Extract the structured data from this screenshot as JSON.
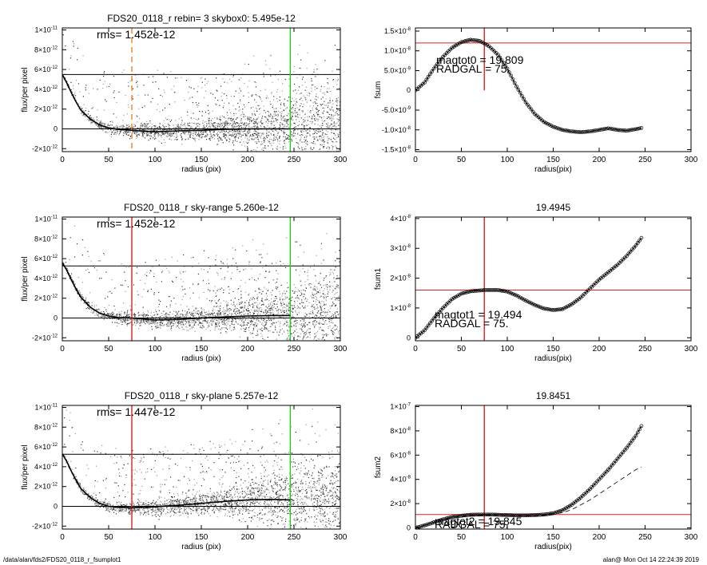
{
  "footer": {
    "path": "/data/alan/fds2/FDS20_0118_r_fsumplot1",
    "stamp": "alan@  Mon Oct 14 22:24:39 2019"
  },
  "chart_data": [
    {
      "id": "profile1",
      "type": "scatter",
      "title": "FDS20_0118_r rebin= 3    skybox0:  5.495e-12",
      "annotation": "rms= 1.452e-12",
      "xlabel": "radius (pix)",
      "ylabel": "flux/per pixel",
      "xlim": [
        0,
        300
      ],
      "ylim": [
        -2.3e-12,
        1.02e-11
      ],
      "xticks": [
        "0",
        "50",
        "100",
        "150",
        "200",
        "250",
        "300"
      ],
      "yticks": [
        {
          "v": -2e-12,
          "m": "-2",
          "e": "-12"
        },
        {
          "v": 0,
          "m": "0",
          "e": ""
        },
        {
          "v": 2e-12,
          "m": "2",
          "e": "-12"
        },
        {
          "v": 4e-12,
          "m": "4",
          "e": "-12"
        },
        {
          "v": 6e-12,
          "m": "6",
          "e": "-12"
        },
        {
          "v": 8e-12,
          "m": "8",
          "e": "-12"
        },
        {
          "v": 1e-11,
          "m": "1",
          "e": "-11"
        }
      ],
      "hlines": [
        {
          "y": 5.495e-12,
          "color": "#000000"
        },
        {
          "y": 0,
          "color": "#000000"
        }
      ],
      "vlines": [
        {
          "x": 75,
          "color": "#f08020",
          "style": "dashed"
        },
        {
          "x": 246,
          "color": "#22cc22",
          "style": "solid"
        }
      ],
      "series": [
        {
          "values": [
            [
              0,
              5.5e-12
            ],
            [
              5,
              4.6e-12
            ],
            [
              10,
              3.6e-12
            ],
            [
              15,
              2.7e-12
            ],
            [
              20,
              1.9e-12
            ],
            [
              30,
              1e-12
            ],
            [
              40,
              4e-13
            ],
            [
              50,
              1e-13
            ],
            [
              60,
              -5e-14
            ],
            [
              75,
              -1.5e-13
            ],
            [
              100,
              -3e-13
            ],
            [
              125,
              -2e-13
            ],
            [
              150,
              -1.5e-13
            ],
            [
              175,
              -5e-14
            ],
            [
              200,
              0
            ],
            [
              225,
              0
            ],
            [
              246,
              0
            ]
          ]
        }
      ]
    },
    {
      "id": "fsum0",
      "type": "line",
      "title": "",
      "annotations": [
        "magtot0 =  19.809",
        "RADGAL =     75."
      ],
      "xlabel": "radius(pix)",
      "ylabel": "fsum",
      "xlim": [
        0,
        300
      ],
      "ylim": [
        -1.55e-08,
        1.58e-08
      ],
      "xticks": [
        "0",
        "50",
        "100",
        "150",
        "200",
        "250",
        "300"
      ],
      "yticks": [
        {
          "v": -1.5e-08,
          "m": "-1.5",
          "e": "-8"
        },
        {
          "v": -1e-08,
          "m": "-1.0",
          "e": "-8"
        },
        {
          "v": -5e-09,
          "m": "-5.0",
          "e": "-9"
        },
        {
          "v": 0,
          "m": "0",
          "e": ""
        },
        {
          "v": 5e-09,
          "m": "5.0",
          "e": "-9"
        },
        {
          "v": 1e-08,
          "m": "1.0",
          "e": "-8"
        },
        {
          "v": 1.5e-08,
          "m": "1.5",
          "e": "-8"
        }
      ],
      "hlines": [
        {
          "y": 1.2e-08,
          "color": "#e02020"
        }
      ],
      "vlines": [
        {
          "x": 75,
          "color": "#e02020",
          "style": "solid",
          "ymin": 0
        }
      ],
      "series": [
        {
          "values": [
            [
              0,
              0
            ],
            [
              10,
              2e-09
            ],
            [
              20,
              5.5e-09
            ],
            [
              30,
              8.5e-09
            ],
            [
              40,
              1.08e-08
            ],
            [
              50,
              1.22e-08
            ],
            [
              60,
              1.28e-08
            ],
            [
              70,
              1.25e-08
            ],
            [
              80,
              1.12e-08
            ],
            [
              90,
              9e-09
            ],
            [
              100,
              5.5e-09
            ],
            [
              110,
              1e-09
            ],
            [
              120,
              -3e-09
            ],
            [
              130,
              -6e-09
            ],
            [
              140,
              -8e-09
            ],
            [
              150,
              -9.2e-09
            ],
            [
              160,
              -1e-08
            ],
            [
              170,
              -1.04e-08
            ],
            [
              180,
              -1.06e-08
            ],
            [
              190,
              -1.04e-08
            ],
            [
              200,
              -1e-08
            ],
            [
              210,
              -9.6e-09
            ],
            [
              220,
              -1e-08
            ],
            [
              230,
              -1.02e-08
            ],
            [
              240,
              -9.8e-09
            ],
            [
              246,
              -9.5e-09
            ]
          ]
        }
      ]
    },
    {
      "id": "profile2",
      "type": "scatter",
      "title": "FDS20_0118_r sky-range  5.260e-12",
      "annotation": "rms= 1.452e-12",
      "xlabel": "radius (pix)",
      "ylabel": "flux/per pixel",
      "xlim": [
        0,
        300
      ],
      "ylim": [
        -2.3e-12,
        1.02e-11
      ],
      "xticks": [
        "0",
        "50",
        "100",
        "150",
        "200",
        "250",
        "300"
      ],
      "yticks": [
        {
          "v": -2e-12,
          "m": "-2",
          "e": "-12"
        },
        {
          "v": 0,
          "m": "0",
          "e": ""
        },
        {
          "v": 2e-12,
          "m": "2",
          "e": "-12"
        },
        {
          "v": 4e-12,
          "m": "4",
          "e": "-12"
        },
        {
          "v": 6e-12,
          "m": "6",
          "e": "-12"
        },
        {
          "v": 8e-12,
          "m": "8",
          "e": "-12"
        },
        {
          "v": 1e-11,
          "m": "1",
          "e": "-11"
        }
      ],
      "hlines": [
        {
          "y": 5.26e-12,
          "color": "#000000"
        },
        {
          "y": 0,
          "color": "#000000"
        }
      ],
      "vlines": [
        {
          "x": 75,
          "color": "#e02020",
          "style": "solid"
        },
        {
          "x": 246,
          "color": "#22cc22",
          "style": "solid"
        }
      ],
      "series": [
        {
          "values": [
            [
              0,
              5.6e-12
            ],
            [
              5,
              4.8e-12
            ],
            [
              10,
              3.8e-12
            ],
            [
              15,
              2.9e-12
            ],
            [
              20,
              2.1e-12
            ],
            [
              30,
              1.1e-12
            ],
            [
              40,
              5e-13
            ],
            [
              50,
              2e-13
            ],
            [
              60,
              5e-14
            ],
            [
              75,
              0
            ],
            [
              100,
              -2e-13
            ],
            [
              125,
              -1.5e-13
            ],
            [
              150,
              0
            ],
            [
              175,
              1e-13
            ],
            [
              200,
              2e-13
            ],
            [
              225,
              2.5e-13
            ],
            [
              246,
              2.5e-13
            ]
          ]
        }
      ]
    },
    {
      "id": "fsum1",
      "type": "line",
      "title": "19.4945",
      "annotations": [
        "magtot1 =  19.494",
        "RADGAL =     75."
      ],
      "xlabel": "radius(pix)",
      "ylabel": "fsum1",
      "xlim": [
        0,
        300
      ],
      "ylim": [
        -1e-09,
        4.05e-08
      ],
      "xticks": [
        "0",
        "50",
        "100",
        "150",
        "200",
        "250",
        "300"
      ],
      "yticks": [
        {
          "v": 0,
          "m": "0",
          "e": ""
        },
        {
          "v": 1e-08,
          "m": "1",
          "e": "-8"
        },
        {
          "v": 2e-08,
          "m": "2",
          "e": "-8"
        },
        {
          "v": 3e-08,
          "m": "3",
          "e": "-8"
        },
        {
          "v": 4e-08,
          "m": "4",
          "e": "-8"
        }
      ],
      "hlines": [
        {
          "y": 1.6e-08,
          "color": "#e02020"
        }
      ],
      "vlines": [
        {
          "x": 75,
          "color": "#e02020",
          "style": "solid"
        }
      ],
      "series": [
        {
          "values": [
            [
              0,
              0
            ],
            [
              10,
              2.5e-09
            ],
            [
              20,
              6.5e-09
            ],
            [
              30,
              1e-08
            ],
            [
              40,
              1.3e-08
            ],
            [
              50,
              1.48e-08
            ],
            [
              60,
              1.56e-08
            ],
            [
              75,
              1.6e-08
            ],
            [
              90,
              1.6e-08
            ],
            [
              100,
              1.55e-08
            ],
            [
              110,
              1.42e-08
            ],
            [
              120,
              1.25e-08
            ],
            [
              130,
              1.1e-08
            ],
            [
              140,
              9.8e-09
            ],
            [
              150,
              9.3e-09
            ],
            [
              160,
              9.6e-09
            ],
            [
              170,
              1.12e-08
            ],
            [
              180,
              1.35e-08
            ],
            [
              190,
              1.65e-08
            ],
            [
              200,
              1.95e-08
            ],
            [
              210,
              2.2e-08
            ],
            [
              220,
              2.45e-08
            ],
            [
              230,
              2.75e-08
            ],
            [
              240,
              3.1e-08
            ],
            [
              246,
              3.35e-08
            ]
          ]
        }
      ]
    },
    {
      "id": "profile3",
      "type": "scatter",
      "title": "FDS20_0118_r sky-plane  5.257e-12",
      "annotation": "rms= 1.447e-12",
      "xlabel": "radius (pix)",
      "ylabel": "flux/per pixel",
      "xlim": [
        0,
        300
      ],
      "ylim": [
        -2.3e-12,
        1.02e-11
      ],
      "xticks": [
        "0",
        "50",
        "100",
        "150",
        "200",
        "250",
        "300"
      ],
      "yticks": [
        {
          "v": -2e-12,
          "m": "-2",
          "e": "-12"
        },
        {
          "v": 0,
          "m": "0",
          "e": ""
        },
        {
          "v": 2e-12,
          "m": "2",
          "e": "-12"
        },
        {
          "v": 4e-12,
          "m": "4",
          "e": "-12"
        },
        {
          "v": 6e-12,
          "m": "6",
          "e": "-12"
        },
        {
          "v": 8e-12,
          "m": "8",
          "e": "-12"
        },
        {
          "v": 1e-11,
          "m": "1",
          "e": "-11"
        }
      ],
      "hlines": [
        {
          "y": 5.257e-12,
          "color": "#000000"
        },
        {
          "y": 0,
          "color": "#000000"
        }
      ],
      "vlines": [
        {
          "x": 75,
          "color": "#e02020",
          "style": "solid"
        },
        {
          "x": 246,
          "color": "#22cc22",
          "style": "solid"
        }
      ],
      "series": [
        {
          "values": [
            [
              0,
              5.3e-12
            ],
            [
              5,
              4.5e-12
            ],
            [
              10,
              3.5e-12
            ],
            [
              15,
              2.6e-12
            ],
            [
              20,
              1.8e-12
            ],
            [
              30,
              9e-13
            ],
            [
              40,
              3e-13
            ],
            [
              50,
              0
            ],
            [
              60,
              -1e-13
            ],
            [
              75,
              -1.5e-13
            ],
            [
              100,
              -5e-14
            ],
            [
              125,
              1e-13
            ],
            [
              150,
              3e-13
            ],
            [
              175,
              5e-13
            ],
            [
              200,
              6.5e-13
            ],
            [
              225,
              7e-13
            ],
            [
              246,
              6.5e-13
            ]
          ]
        }
      ]
    },
    {
      "id": "fsum2",
      "type": "line",
      "title": "19.8451",
      "annotations": [
        "magtot2 =  19.845",
        "RADGAL =     75."
      ],
      "xlabel": "radius(pix)",
      "ylabel": "fsum2",
      "xlim": [
        0,
        300
      ],
      "ylim": [
        -1e-09,
        1.01e-07
      ],
      "xticks": [
        "0",
        "50",
        "100",
        "150",
        "200",
        "250",
        "300"
      ],
      "yticks": [
        {
          "v": 0,
          "m": "0",
          "e": ""
        },
        {
          "v": 2e-08,
          "m": "2",
          "e": "-8"
        },
        {
          "v": 4e-08,
          "m": "4",
          "e": "-8"
        },
        {
          "v": 6e-08,
          "m": "6",
          "e": "-8"
        },
        {
          "v": 8e-08,
          "m": "8",
          "e": "-8"
        },
        {
          "v": 1e-07,
          "m": "1",
          "e": "-7"
        }
      ],
      "hlines": [
        {
          "y": 1.1e-08,
          "color": "#e02020"
        }
      ],
      "vlines": [
        {
          "x": 75,
          "color": "#e02020",
          "style": "solid"
        }
      ],
      "series": [
        {
          "values": [
            [
              0,
              0
            ],
            [
              10,
              2e-09
            ],
            [
              20,
              4.5e-09
            ],
            [
              30,
              7e-09
            ],
            [
              40,
              9e-09
            ],
            [
              50,
              1e-08
            ],
            [
              60,
              1.08e-08
            ],
            [
              75,
              1.1e-08
            ],
            [
              90,
              1.08e-08
            ],
            [
              100,
              1.05e-08
            ],
            [
              110,
              1.03e-08
            ],
            [
              120,
              1.03e-08
            ],
            [
              130,
              1.05e-08
            ],
            [
              140,
              1.1e-08
            ],
            [
              150,
              1.2e-08
            ],
            [
              160,
              1.45e-08
            ],
            [
              170,
              1.9e-08
            ],
            [
              180,
              2.5e-08
            ],
            [
              190,
              3.2e-08
            ],
            [
              200,
              4e-08
            ],
            [
              210,
              4.8e-08
            ],
            [
              220,
              5.7e-08
            ],
            [
              230,
              6.6e-08
            ],
            [
              240,
              7.6e-08
            ],
            [
              246,
              8.4e-08
            ]
          ]
        },
        {
          "style": "dashed",
          "values": [
            [
              0,
              0
            ],
            [
              20,
              4.5e-09
            ],
            [
              40,
              8.5e-09
            ],
            [
              60,
              1e-08
            ],
            [
              80,
              1.05e-08
            ],
            [
              100,
              1.02e-08
            ],
            [
              120,
              1e-08
            ],
            [
              140,
              1.02e-08
            ],
            [
              160,
              1.25e-08
            ],
            [
              170,
              1.5e-08
            ],
            [
              180,
              1.9e-08
            ],
            [
              190,
              2.3e-08
            ],
            [
              200,
              2.8e-08
            ],
            [
              210,
              3.3e-08
            ],
            [
              220,
              3.8e-08
            ],
            [
              230,
              4.3e-08
            ],
            [
              240,
              4.8e-08
            ],
            [
              246,
              5e-08
            ]
          ]
        }
      ]
    }
  ]
}
